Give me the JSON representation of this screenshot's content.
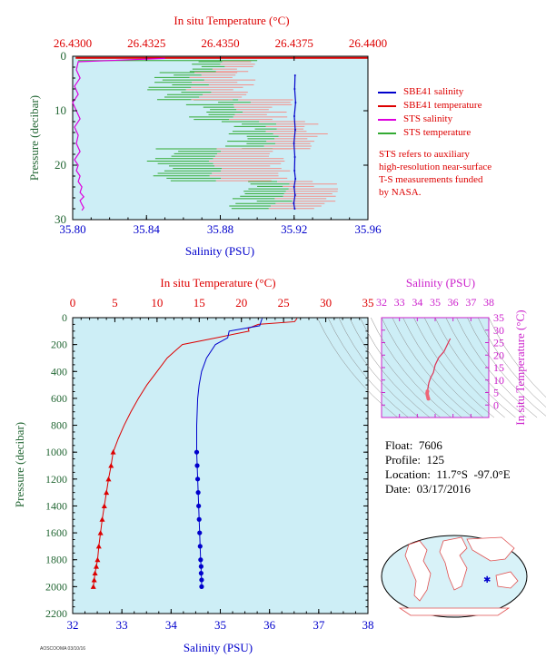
{
  "colors": {
    "plot_bg": "#cdeef6",
    "temperature": "#dd0000",
    "salinity": "#0000cc",
    "sts_salinity": "#dd00dd",
    "sts_temperature": "#33aa33",
    "sts_temperature_light": "#f4908a",
    "pressure_axis": "#226633",
    "ts_axis": "#cc22cc"
  },
  "legend": {
    "items": [
      {
        "label": "SBE41 salinity",
        "color": "#0000cc"
      },
      {
        "label": "SBE41 temperature",
        "color": "#dd0000"
      },
      {
        "label": "STS salinity",
        "color": "#dd00dd"
      },
      {
        "label": "STS temperature",
        "color": "#33aa33"
      }
    ]
  },
  "note": [
    "STS refers to auxiliary",
    "high-resolution near-surface",
    "T-S measurements funded",
    "by NASA."
  ],
  "float_info": {
    "float": "Float:  7606",
    "profile": "Profile:  125",
    "location": "Location:  11.7°S  -97.0°E",
    "date": "Date:  03/17/2016"
  },
  "footer_tag": "AOSCOOMA 03/10/16",
  "chart_data": [
    {
      "type": "line",
      "panel": "near-surface",
      "title_top": "In situ Temperature (°C)",
      "xlabel": "Salinity (PSU)",
      "ylabel": "Pressure (decibar)",
      "xlim": [
        35.8,
        35.96
      ],
      "xticks": [
        "35.80",
        "35.84",
        "35.88",
        "35.92",
        "35.96"
      ],
      "x2lim": [
        26.43,
        26.44
      ],
      "x2ticks": [
        "26.4300",
        "26.4325",
        "26.4350",
        "26.4375",
        "26.4400"
      ],
      "ylim": [
        30,
        0
      ],
      "yticks": [
        "0",
        "10",
        "20",
        "30"
      ],
      "series": [
        {
          "name": "SBE41 salinity",
          "color": "#0000cc",
          "x": [
            35.9205,
            35.9203,
            35.9208,
            35.9201,
            35.9206,
            35.9199,
            35.9204,
            35.9202,
            35.9207,
            35.92,
            35.9205,
            35.9198,
            35.9203
          ],
          "y": [
            3.5,
            6,
            8.5,
            11,
            13.5,
            16,
            18.5,
            21,
            22.5,
            24,
            25.5,
            27,
            28
          ]
        },
        {
          "name": "SBE41 temperature",
          "color": "#dd0000",
          "x": [
            26.4301,
            26.44
          ],
          "y": [
            0.3,
            0.3
          ]
        },
        {
          "name": "STS salinity",
          "color": "#dd00dd",
          "x": [
            35.85,
            35.803,
            35.802,
            35.804,
            35.801,
            35.803,
            35.8,
            35.802,
            35.804,
            35.801,
            35.803,
            35.802,
            35.804,
            35.801,
            35.803,
            35.802,
            35.804,
            35.803,
            35.805,
            35.804,
            35.806,
            35.804,
            35.805,
            35.806,
            35.805
          ],
          "y": [
            0.4,
            1,
            2.5,
            4,
            5.5,
            7,
            8.5,
            10,
            11.5,
            13,
            14.5,
            16,
            17.5,
            19,
            20,
            21,
            22,
            23,
            24,
            25,
            25.8,
            26.5,
            27.2,
            27.8,
            28.3
          ]
        }
      ]
    },
    {
      "type": "line",
      "panel": "profile",
      "title_top": "In situ Temperature (°C)",
      "xlabel": "Salinity (PSU)",
      "ylabel": "Pressure (decibar)",
      "xlim": [
        32,
        38
      ],
      "xticks": [
        "32",
        "33",
        "34",
        "35",
        "36",
        "37",
        "38"
      ],
      "x2lim": [
        0,
        35
      ],
      "x2ticks": [
        "0",
        "5",
        "10",
        "15",
        "20",
        "25",
        "30",
        "35"
      ],
      "ylim": [
        2200,
        0
      ],
      "yticks": [
        "0",
        "200",
        "400",
        "600",
        "800",
        "1000",
        "1200",
        "1400",
        "1600",
        "1800",
        "2000",
        "2200"
      ],
      "series": [
        {
          "name": "Temperature",
          "color": "#dd0000",
          "x": [
            26.6,
            26.3,
            22.0,
            20.8,
            20.9,
            17.0,
            13.0,
            12.1,
            11.2,
            10.0,
            8.8,
            7.8,
            6.9,
            6.1,
            5.4,
            4.8,
            4.55,
            4.25,
            4.0,
            3.75,
            3.5,
            3.3,
            3.1,
            2.95,
            2.8,
            2.65,
            2.55,
            2.45
          ],
          "y": [
            5,
            30,
            50,
            80,
            100,
            150,
            200,
            250,
            300,
            400,
            500,
            600,
            700,
            800,
            900,
            1000,
            1100,
            1200,
            1300,
            1400,
            1500,
            1600,
            1700,
            1800,
            1850,
            1900,
            1950,
            2000
          ]
        },
        {
          "name": "Salinity",
          "color": "#0000cc",
          "x": [
            35.85,
            35.8,
            35.18,
            35.15,
            34.9,
            34.72,
            34.62,
            34.57,
            34.54,
            34.52,
            34.52,
            34.53,
            34.54,
            34.55,
            34.56,
            34.57,
            34.58,
            34.59,
            34.6,
            34.61,
            34.61,
            34.62,
            34.62
          ],
          "y": [
            5,
            60,
            100,
            150,
            200,
            300,
            400,
            500,
            600,
            800,
            1000,
            1100,
            1200,
            1300,
            1400,
            1500,
            1600,
            1700,
            1800,
            1850,
            1900,
            1950,
            2000
          ]
        }
      ]
    },
    {
      "type": "line",
      "panel": "T-S diagram",
      "xlabel": "Salinity (PSU)",
      "ylabel": "In situ Temperature (°C)",
      "xlim": [
        32,
        38
      ],
      "xticks": [
        "32",
        "33",
        "34",
        "35",
        "36",
        "37",
        "38"
      ],
      "ylim": [
        -5,
        35
      ],
      "yticks": [
        "0",
        "5",
        "10",
        "15",
        "20",
        "25",
        "30",
        "35"
      ],
      "series": [
        {
          "name": "T-S",
          "color": "#dd3355",
          "x": [
            35.85,
            35.8,
            35.5,
            35.2,
            35.0,
            34.9,
            34.75,
            34.65,
            34.6,
            34.57,
            34.55,
            34.57,
            34.6,
            34.62
          ],
          "y": [
            26.6,
            26.0,
            21.5,
            19.0,
            16.0,
            13.0,
            11.0,
            9.0,
            7.0,
            5.5,
            4.8,
            3.8,
            3.0,
            2.5
          ]
        }
      ]
    }
  ]
}
